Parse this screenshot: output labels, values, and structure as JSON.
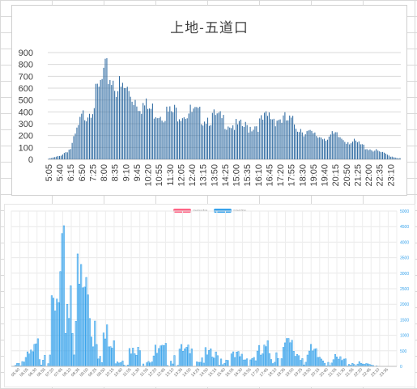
{
  "chart_data": [
    {
      "type": "bar",
      "title": "上地-五道口",
      "ylim": [
        0,
        900
      ],
      "yticks": [
        0,
        100,
        200,
        300,
        400,
        500,
        600,
        700,
        800,
        900
      ],
      "x_tick_labels": [
        "5:05",
        "5:40",
        "6:15",
        "6:50",
        "7:25",
        "8:00",
        "8:35",
        "9:10",
        "9:45",
        "10:20",
        "10:55",
        "11:30",
        "12:05",
        "12:40",
        "13:15",
        "13:50",
        "14:25",
        "15:00",
        "15:35",
        "16:10",
        "16:45",
        "17:20",
        "17:55",
        "18:30",
        "19:05",
        "19:40",
        "20:15",
        "20:50",
        "21:25",
        "22:00",
        "22:35",
        "23:10"
      ],
      "bar_color": "#2e6aa1",
      "grid": true,
      "profile_keypoints": [
        [
          "5:05",
          5
        ],
        [
          "5:40",
          30
        ],
        [
          "6:15",
          100
        ],
        [
          "6:50",
          380
        ],
        [
          "7:25",
          520
        ],
        [
          "7:45",
          640
        ],
        [
          "8:00",
          760
        ],
        [
          "8:15",
          800
        ],
        [
          "8:35",
          730
        ],
        [
          "8:55",
          640
        ],
        [
          "9:10",
          650
        ],
        [
          "9:45",
          560
        ],
        [
          "10:20",
          470
        ],
        [
          "10:55",
          450
        ],
        [
          "11:30",
          430
        ],
        [
          "12:05",
          450
        ],
        [
          "12:40",
          430
        ],
        [
          "13:15",
          400
        ],
        [
          "13:50",
          390
        ],
        [
          "14:25",
          360
        ],
        [
          "15:00",
          310
        ],
        [
          "15:35",
          300
        ],
        [
          "16:10",
          330
        ],
        [
          "16:45",
          400
        ],
        [
          "17:20",
          380
        ],
        [
          "17:55",
          350
        ],
        [
          "18:30",
          280
        ],
        [
          "19:05",
          220
        ],
        [
          "19:40",
          210
        ],
        [
          "20:15",
          220
        ],
        [
          "20:50",
          180
        ],
        [
          "21:25",
          150
        ],
        [
          "22:00",
          100
        ],
        [
          "22:35",
          70
        ],
        [
          "23:10",
          30
        ],
        [
          "23:35",
          10
        ]
      ]
    },
    {
      "type": "bar",
      "legend": [
        {
          "label": "previous flow",
          "color": "#ff6384"
        },
        {
          "label": "current flow",
          "color": "#36a2eb"
        }
      ],
      "ylim": [
        0,
        5000
      ],
      "yticks": [
        0,
        500,
        1000,
        1500,
        2000,
        2500,
        3000,
        3500,
        4000,
        4500,
        5000
      ],
      "x_tick_labels": [
        "05:40",
        "06:05",
        "06:30",
        "06:55",
        "07:20",
        "07:45",
        "08:10",
        "08:35",
        "09:00",
        "09:25",
        "09:50",
        "10:15",
        "10:40",
        "11:05",
        "11:30",
        "11:55",
        "12:20",
        "12:45",
        "13:10",
        "13:35",
        "14:00",
        "14:25",
        "14:50",
        "15:15",
        "15:40",
        "16:05",
        "16:30",
        "16:55",
        "17:20",
        "17:45",
        "18:10",
        "18:35",
        "19:00",
        "19:25",
        "19:50",
        "20:15",
        "20:40",
        "21:05",
        "21:30",
        "21:55",
        "22:20",
        "22:45",
        "23:10",
        "23:35"
      ],
      "bar_color": "#36a2eb",
      "grid": true,
      "profile_keypoints": [
        [
          "05:10",
          0
        ],
        [
          "05:25",
          150
        ],
        [
          "05:50",
          300
        ],
        [
          "06:15",
          600
        ],
        [
          "06:40",
          1100
        ],
        [
          "07:00",
          1500
        ],
        [
          "07:20",
          2300
        ],
        [
          "07:35",
          3200
        ],
        [
          "07:50",
          4100
        ],
        [
          "08:00",
          4300
        ],
        [
          "08:20",
          3000
        ],
        [
          "08:40",
          3500
        ],
        [
          "09:00",
          2800
        ],
        [
          "09:15",
          2500
        ],
        [
          "09:35",
          1400
        ],
        [
          "09:50",
          950
        ],
        [
          "10:20",
          600
        ],
        [
          "11:00",
          520
        ],
        [
          "12:00",
          560
        ],
        [
          "13:00",
          580
        ],
        [
          "14:00",
          500
        ],
        [
          "15:00",
          400
        ],
        [
          "16:00",
          380
        ],
        [
          "17:00",
          500
        ],
        [
          "17:40",
          700
        ],
        [
          "18:10",
          800
        ],
        [
          "18:40",
          750
        ],
        [
          "19:20",
          600
        ],
        [
          "20:00",
          420
        ],
        [
          "20:40",
          300
        ],
        [
          "21:20",
          220
        ],
        [
          "22:00",
          100
        ],
        [
          "22:30",
          50
        ],
        [
          "23:00",
          10
        ],
        [
          "23:20",
          0
        ]
      ]
    }
  ]
}
